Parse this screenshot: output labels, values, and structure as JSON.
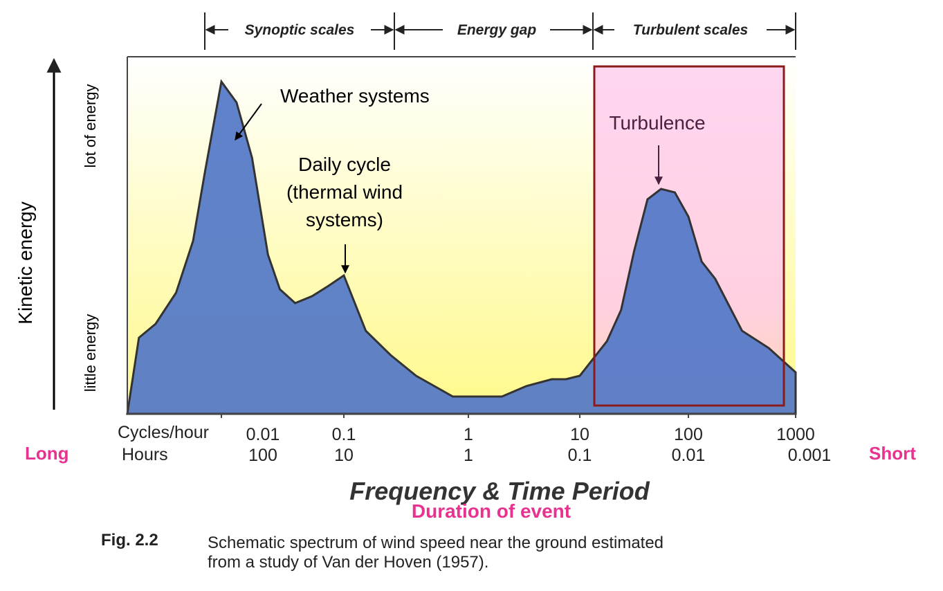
{
  "scales": {
    "synoptic": "Synoptic scales",
    "gap": "Energy gap",
    "turbulent": "Turbulent scales"
  },
  "y_axis": {
    "title": "Kinetic energy",
    "high": "lot of energy",
    "low": "little energy"
  },
  "x_axis": {
    "row1_label": "Cycles/hour",
    "row2_label": "Hours",
    "cycles_ticks": [
      "0.01",
      "0.1",
      "1",
      "10",
      "100",
      "1000"
    ],
    "hours_ticks": [
      "100",
      "10",
      "1",
      "0.1",
      "0.01",
      "0.001"
    ],
    "left_side": "Long",
    "right_side": "Short",
    "title": "Frequency & Time Period",
    "subtitle": "Duration of event"
  },
  "annotations": {
    "weather": "Weather systems",
    "daily_line1": "Daily cycle",
    "daily_line2": "(thermal wind",
    "daily_line3": "systems)",
    "turbulence": "Turbulence"
  },
  "caption": {
    "label": "Fig. 2.2",
    "line1": "Schematic spectrum of wind speed near the ground estimated",
    "line2": "from a study of Van der Hoven (1957)."
  },
  "colors": {
    "area_fill": "#5277c8",
    "highlight_fill": "#ffd6f0",
    "highlight_border": "#8b1a1a",
    "accent": "#e8328f",
    "bg_top": "#ffffff",
    "bg_bottom": "#fff98a"
  },
  "chart_data": {
    "type": "area",
    "x_scale": "log",
    "xlim": [
      0.001,
      1000
    ],
    "ylim": [
      0,
      1
    ],
    "x": [
      0.00133,
      0.002,
      0.0033,
      0.005,
      0.0067,
      0.01,
      0.0133,
      0.0178,
      0.024,
      0.03,
      0.04,
      0.055,
      0.075,
      0.1,
      0.15,
      0.237,
      0.38,
      0.75,
      2,
      3.3,
      5.6,
      7.5,
      10,
      17.8,
      24,
      31.6,
      42,
      56,
      75,
      100,
      133,
      178,
      316,
      562,
      1000
    ],
    "values": [
      0.22,
      0.26,
      0.35,
      0.5,
      0.7,
      0.96,
      0.9,
      0.74,
      0.46,
      0.36,
      0.32,
      0.34,
      0.37,
      0.4,
      0.24,
      0.17,
      0.11,
      0.05,
      0.05,
      0.08,
      0.1,
      0.1,
      0.11,
      0.21,
      0.3,
      0.47,
      0.62,
      0.65,
      0.64,
      0.57,
      0.44,
      0.39,
      0.24,
      0.19,
      0.12
    ],
    "highlight_region": {
      "label": "Turbulence",
      "x_range": [
        10,
        1000
      ]
    }
  }
}
